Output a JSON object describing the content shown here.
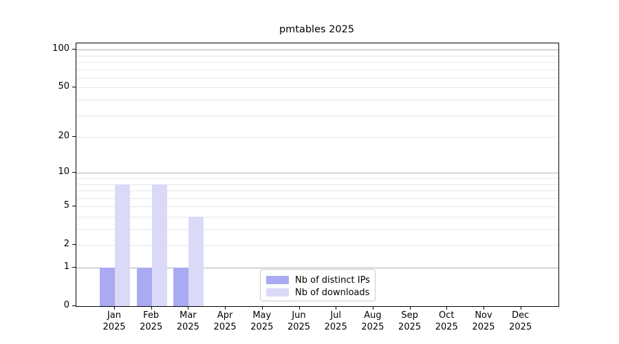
{
  "chart_data": {
    "type": "bar",
    "title": "pmtables 2025",
    "categories": [
      "Jan",
      "Feb",
      "Mar",
      "Apr",
      "May",
      "Jun",
      "Jul",
      "Aug",
      "Sep",
      "Oct",
      "Nov",
      "Dec"
    ],
    "category_year": "2025",
    "series": [
      {
        "name": "Nb of distinct IPs",
        "color": "#aaaaf2",
        "values": [
          1,
          1,
          1,
          0,
          0,
          0,
          0,
          0,
          0,
          0,
          0,
          0
        ]
      },
      {
        "name": "Nb of downloads",
        "color": "#dadaf8",
        "values": [
          8,
          8,
          4,
          0,
          0,
          0,
          0,
          0,
          0,
          0,
          0,
          0
        ]
      }
    ],
    "y_axis": {
      "scale": "log1p",
      "ticks": [
        0,
        1,
        2,
        5,
        10,
        20,
        50,
        100
      ],
      "max": 112,
      "major_gridlines": [
        1,
        10,
        100
      ],
      "minor_gridlines": [
        2,
        3,
        4,
        5,
        6,
        7,
        8,
        9,
        20,
        30,
        40,
        50,
        60,
        70,
        80,
        90
      ]
    },
    "legend": {
      "position": "lower-center-inside"
    },
    "colors": {
      "grid_major": "#b0b0b0",
      "grid_minor": "#e7e7e7",
      "axis": "#000000",
      "background": "#ffffff"
    }
  }
}
